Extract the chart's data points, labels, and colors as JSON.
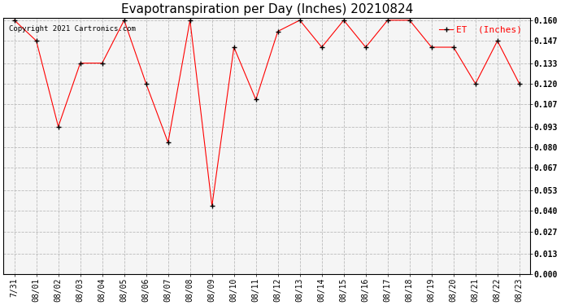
{
  "title": "Evapotranspiration per Day (Inches) 20210824",
  "legend_label": "ET  (Inches)",
  "copyright": "Copyright 2021 Cartronics.com",
  "x_labels": [
    "7/31",
    "08/01",
    "08/02",
    "08/03",
    "08/04",
    "08/05",
    "08/06",
    "08/07",
    "08/08",
    "08/09",
    "08/10",
    "08/11",
    "08/12",
    "08/13",
    "08/14",
    "08/15",
    "08/16",
    "08/17",
    "08/18",
    "08/19",
    "08/20",
    "08/21",
    "08/22",
    "08/23"
  ],
  "y_values": [
    0.16,
    0.147,
    0.093,
    0.133,
    0.133,
    0.16,
    0.12,
    0.083,
    0.16,
    0.043,
    0.143,
    0.11,
    0.153,
    0.16,
    0.143,
    0.16,
    0.143,
    0.16,
    0.16,
    0.143,
    0.143,
    0.12,
    0.147,
    0.12
  ],
  "ylim": [
    0.0,
    0.16
  ],
  "yticks": [
    0.0,
    0.013,
    0.027,
    0.04,
    0.053,
    0.067,
    0.08,
    0.093,
    0.107,
    0.12,
    0.133,
    0.147,
    0.16
  ],
  "line_color": "red",
  "marker_color": "black",
  "marker": "+",
  "bg_color": "#ffffff",
  "plot_bg_color": "#f5f5f5",
  "grid_color": "#bbbbbb",
  "title_fontsize": 11,
  "tick_fontsize": 7,
  "legend_color": "red"
}
